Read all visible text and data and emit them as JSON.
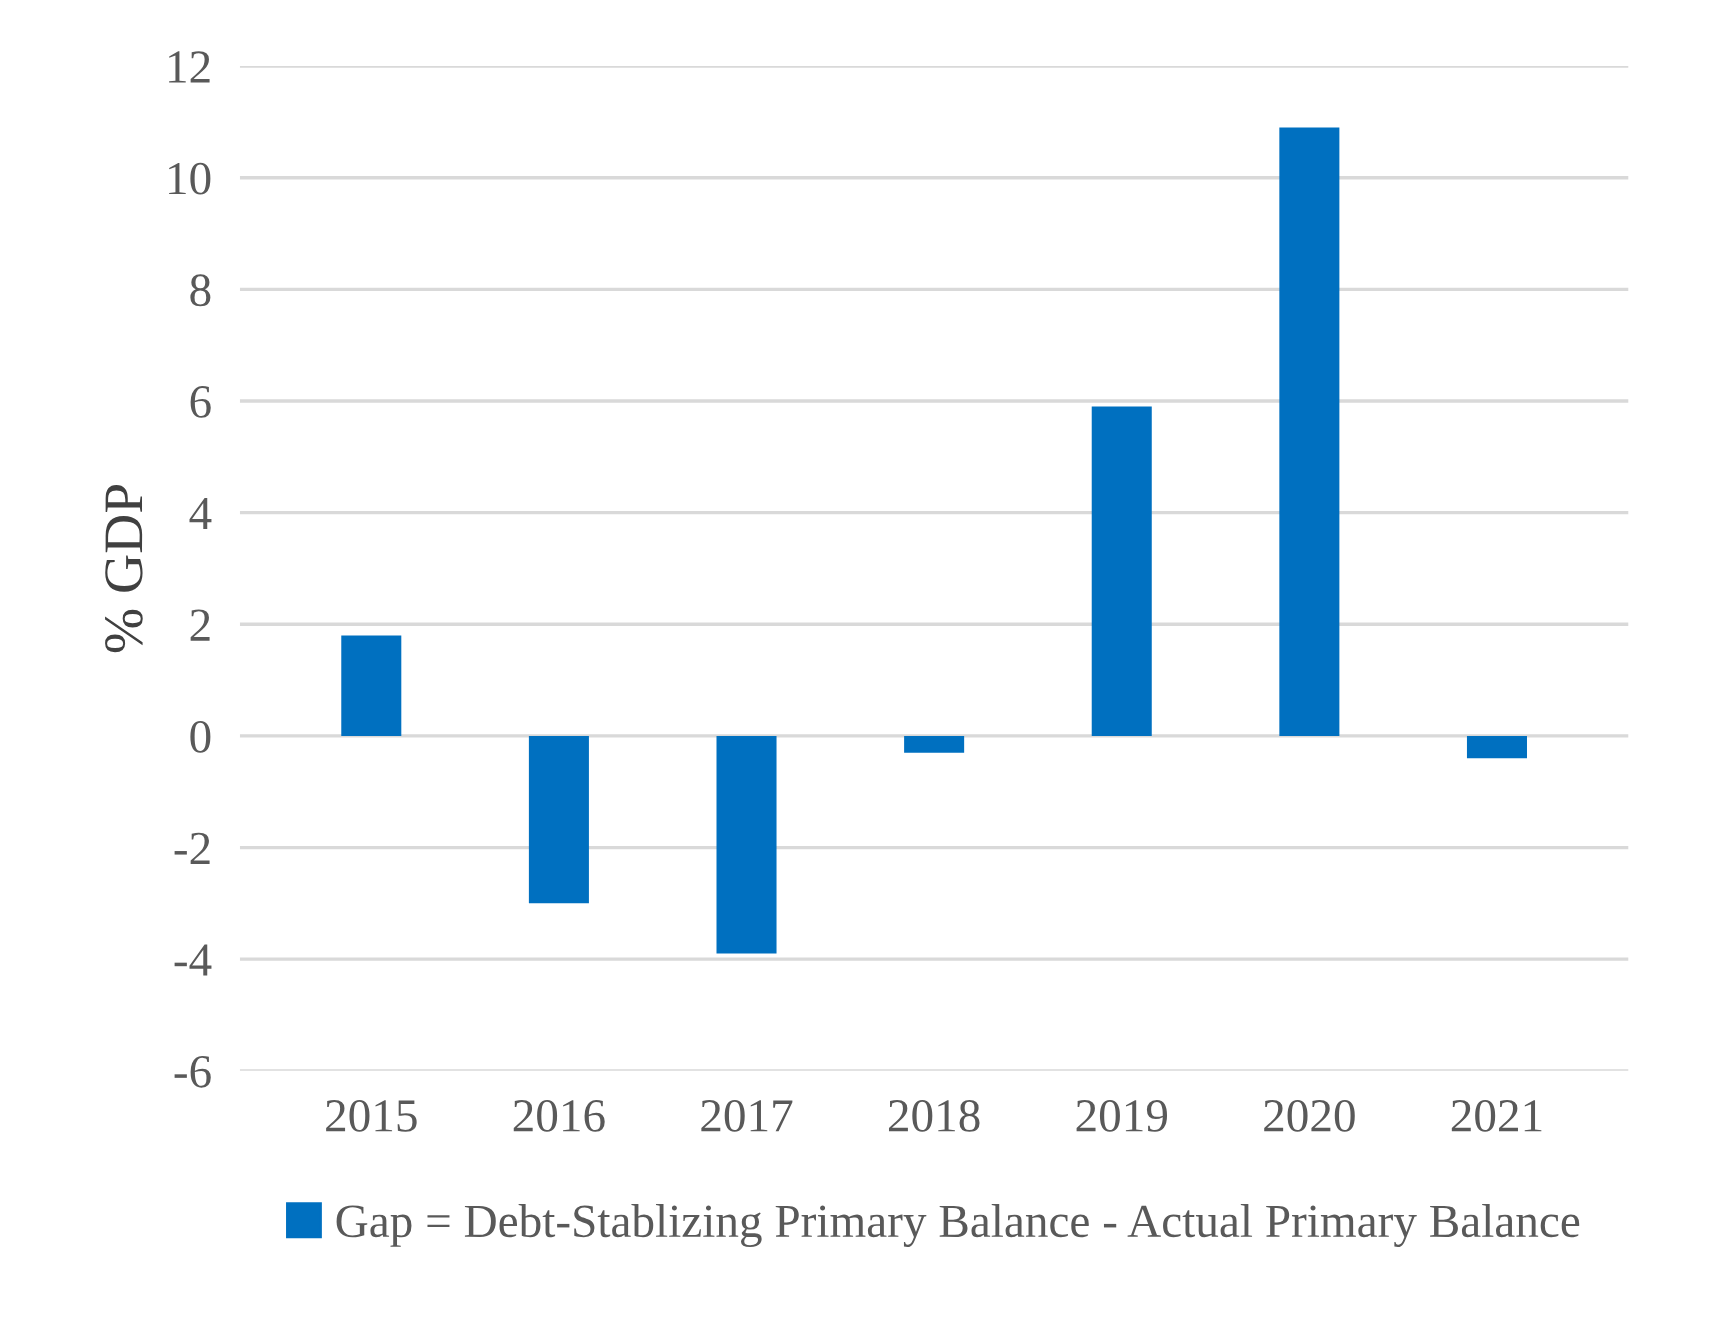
{
  "chart_data": {
    "type": "bar",
    "ylabel": "% GDP",
    "categories": [
      "2015",
      "2016",
      "2017",
      "2018",
      "2019",
      "2020",
      "2021"
    ],
    "series": [
      {
        "name": "Gap = Debt-Stablizing Primary Balance - Actual Primary Balance",
        "color": "#0070c0",
        "values": [
          1.8,
          -3.0,
          -3.9,
          -0.3,
          5.9,
          10.9,
          -0.4
        ]
      }
    ],
    "ylim": [
      -6,
      12
    ],
    "yticks": [
      -6,
      -4,
      -2,
      0,
      2,
      4,
      6,
      8,
      10,
      12
    ],
    "grid": "y",
    "legend": "bottom"
  }
}
